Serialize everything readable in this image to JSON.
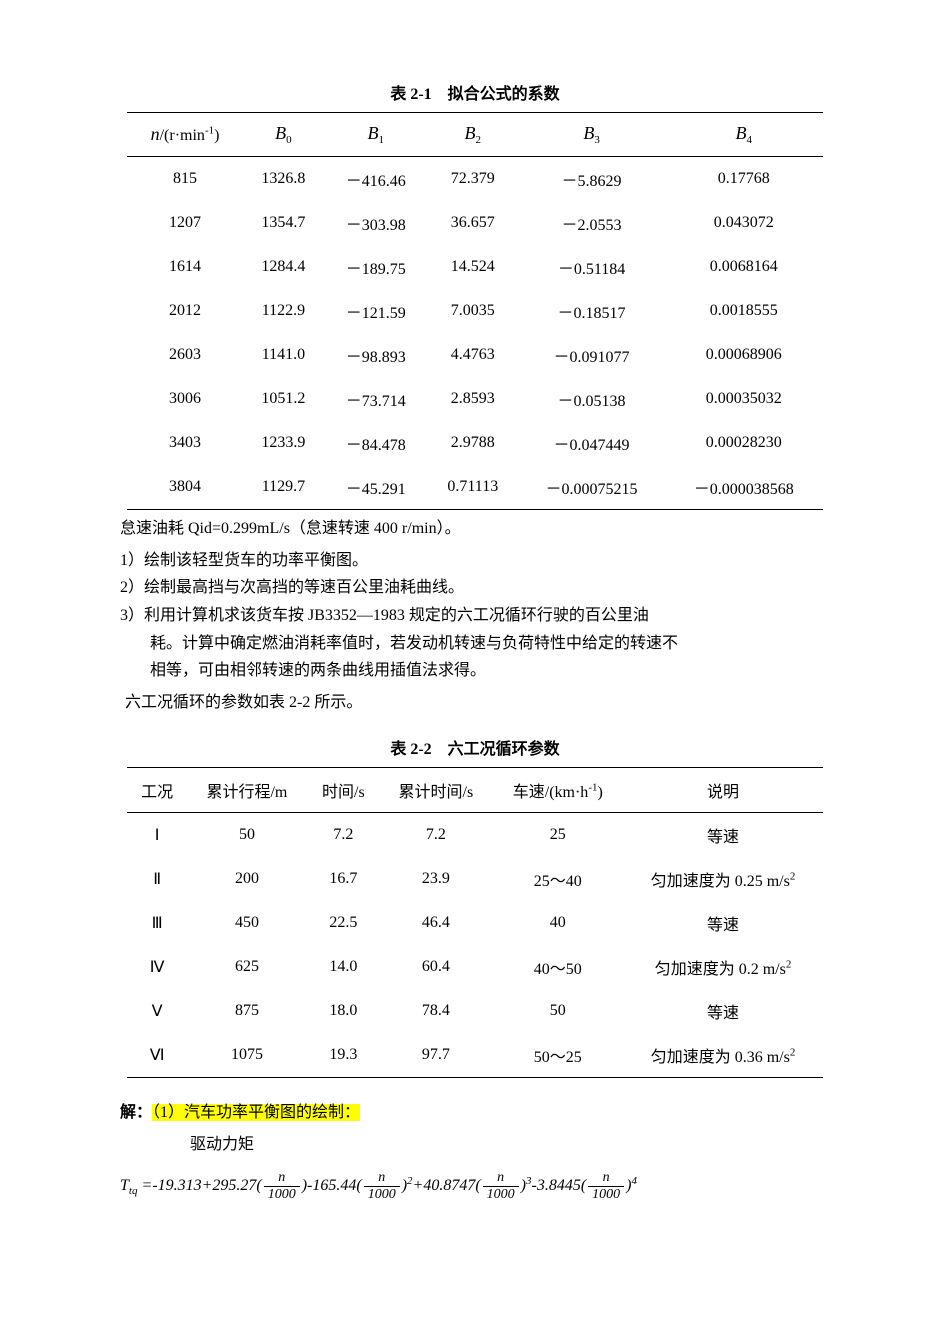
{
  "table1": {
    "caption": "表 2-1　拟合公式的系数",
    "headers": {
      "c0_html": "<span class='th-ital'>n</span>/(r·min<span class='sup'>-1</span>)",
      "c1_html": "<span class='th-ital'>B</span><span class='sub'>0</span>",
      "c2_html": "<span class='th-ital'>B</span><span class='sub'>1</span>",
      "c3_html": "<span class='th-ital'>B</span><span class='sub'>2</span>",
      "c4_html": "<span class='th-ital'>B</span><span class='sub'>3</span>",
      "c5_html": "<span class='th-ital'>B</span><span class='sub'>4</span>"
    },
    "rows": [
      [
        "815",
        "1326.8",
        "－416.46",
        "72.379",
        "－5.8629",
        "0.17768"
      ],
      [
        "1207",
        "1354.7",
        "－303.98",
        "36.657",
        "－2.0553",
        "0.043072"
      ],
      [
        "1614",
        "1284.4",
        "－189.75",
        "14.524",
        "－0.51184",
        "0.0068164"
      ],
      [
        "2012",
        "1122.9",
        "－121.59",
        "7.0035",
        "－0.18517",
        "0.0018555"
      ],
      [
        "2603",
        "1141.0",
        "－98.893",
        "4.4763",
        "－0.091077",
        "0.00068906"
      ],
      [
        "3006",
        "1051.2",
        "－73.714",
        "2.8593",
        "－0.05138",
        "0.00035032"
      ],
      [
        "3403",
        "1233.9",
        "－84.478",
        "2.9788",
        "－0.047449",
        "0.00028230"
      ],
      [
        "3804",
        "1129.7",
        "－45.291",
        "0.71113",
        "－0.00075215",
        "－0.000038568"
      ]
    ]
  },
  "text": {
    "idle": "怠速油耗 Qid=0.299mL/s（怠速转速 400 r/min）。",
    "q1": "1）绘制该轻型货车的功率平衡图。",
    "q2": "2）绘制最高挡与次高挡的等速百公里油耗曲线。",
    "q3a": "3）利用计算机求该货车按 JB3352—1983 规定的六工况循环行驶的百公里油",
    "q3b": "耗。计算中确定燃油消耗率值时，若发动机转速与负荷特性中给定的转速不",
    "q3c": "相等，可由相邻转速的两条曲线用插值法求得。",
    "six": "六工况循环的参数如表 2-2 所示。"
  },
  "table2": {
    "caption": "表 2-2　六工况循环参数",
    "headers": {
      "c0": "工况",
      "c1": "累计行程/m",
      "c2": "时间/s",
      "c3": "累计时间/s",
      "c4_html": "车速/(km·h<span class='sup'>-1</span>)",
      "c5": "说明"
    },
    "rows": [
      {
        "c0": "Ⅰ",
        "c1": "50",
        "c2": "7.2",
        "c3": "7.2",
        "c4": "25",
        "c5": "等速"
      },
      {
        "c0": "Ⅱ",
        "c1": "200",
        "c2": "16.7",
        "c3": "23.9",
        "c4": "25～40",
        "c5_html": "匀加速度为 0.25 m/s<span class='sup'>2</span>"
      },
      {
        "c0": "Ⅲ",
        "c1": "450",
        "c2": "22.5",
        "c3": "46.4",
        "c4": "40",
        "c5": "等速"
      },
      {
        "c0": "Ⅳ",
        "c1": "625",
        "c2": "14.0",
        "c3": "60.4",
        "c4": "40～50",
        "c5_html": "匀加速度为 0.2 m/s<span class='sup'>2</span>"
      },
      {
        "c0": "Ⅴ",
        "c1": "875",
        "c2": "18.0",
        "c3": "78.4",
        "c4": "50",
        "c5": "等速"
      },
      {
        "c0": "Ⅵ",
        "c1": "1075",
        "c2": "19.3",
        "c3": "97.7",
        "c4": "50～25",
        "c5_html": "匀加速度为 0.36 m/s<span class='sup'>2</span>"
      }
    ]
  },
  "solution": {
    "label": "解：",
    "hl": "（1）汽车功率平衡图的绘制：",
    "sub": "驱动力矩",
    "formula_html": "<span class='ital'>T<span class='sub'>tq</span></span> =-19.313+295.27(<span class='frac'><span class='num'>n</span><span class='den'>1000</span></span>)-165.44(<span class='frac'><span class='num'>n</span><span class='den'>1000</span></span>)<span class='sup'>2</span>+40.8747(<span class='frac'><span class='num'>n</span><span class='den'>1000</span></span>)<span class='sup'>3</span>-3.8445(<span class='frac'><span class='num'>n</span><span class='den'>1000</span></span>)<span class='sup'>4</span>"
  }
}
